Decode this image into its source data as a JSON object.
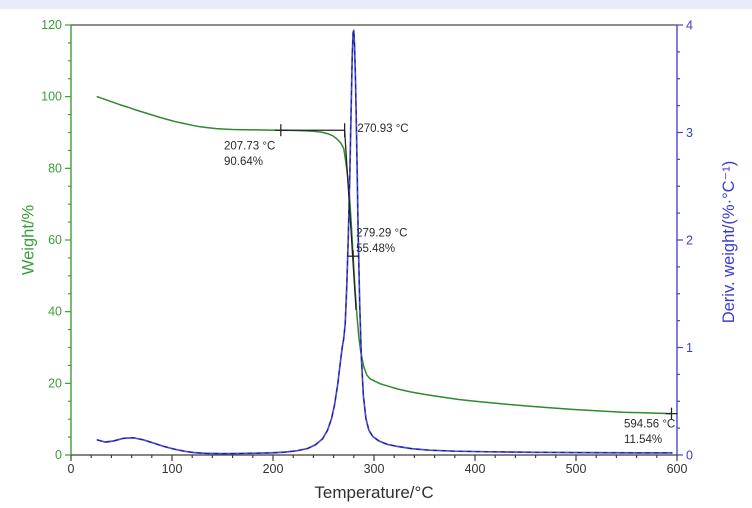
{
  "colors": {
    "top_strip": "#e9ebf8",
    "weight_green": "#2f8a2f",
    "axis_green": "#3b9c3b",
    "deriv_blue": "#4c50c4",
    "deriv_dash_navy": "#191b9e",
    "axis_blue": "#4747cc",
    "label_blue": "#3c3ccc",
    "axis_black": "#3c3c3c",
    "tick_label_black": "#333333",
    "annotation_text": "#2b2b2b",
    "construction_black": "#222222"
  },
  "chart_data": {
    "type": "line",
    "title": "",
    "xlabel": "Temperature/°C",
    "ylabel_left": "Weight/%",
    "ylabel_right": "Deriv. weight/(%·°C⁻¹)",
    "x_range": [
      0,
      600
    ],
    "x_major": 100,
    "x_minor": 20,
    "yl_range": [
      0,
      120
    ],
    "yl_major": 20,
    "yl_minor": 5,
    "yr_range": [
      0,
      4
    ],
    "yr_major": 1,
    "yr_minor": 0.25,
    "x_ticks": [
      0,
      100,
      200,
      300,
      400,
      500,
      600
    ],
    "yl_ticks": [
      0,
      20,
      40,
      60,
      80,
      100,
      120
    ],
    "yr_ticks": [
      0,
      1,
      2,
      3,
      4
    ],
    "grid": false,
    "legend": "none",
    "series": [
      {
        "name": "weight",
        "axis": "left",
        "style": "solid",
        "color_key": "weight_green",
        "width": 1.5,
        "points": [
          [
            26,
            100
          ],
          [
            32,
            99.4
          ],
          [
            40,
            98.6
          ],
          [
            48,
            97.8
          ],
          [
            56,
            97.1
          ],
          [
            64,
            96.3
          ],
          [
            72,
            95.6
          ],
          [
            80,
            94.9
          ],
          [
            88,
            94.2
          ],
          [
            96,
            93.6
          ],
          [
            104,
            93.0
          ],
          [
            112,
            92.5
          ],
          [
            120,
            92.0
          ],
          [
            128,
            91.6
          ],
          [
            136,
            91.3
          ],
          [
            144,
            91.1
          ],
          [
            152,
            90.95
          ],
          [
            160,
            90.85
          ],
          [
            172,
            90.78
          ],
          [
            184,
            90.72
          ],
          [
            196,
            90.68
          ],
          [
            208,
            90.64
          ],
          [
            220,
            90.58
          ],
          [
            230,
            90.5
          ],
          [
            240,
            90.35
          ],
          [
            248,
            90.1
          ],
          [
            254,
            89.7
          ],
          [
            259,
            89.1
          ],
          [
            263,
            88.3
          ],
          [
            267,
            87.1
          ],
          [
            270,
            85.6
          ],
          [
            272,
            82
          ],
          [
            274,
            77.5
          ],
          [
            276,
            71
          ],
          [
            278,
            62
          ],
          [
            279.3,
            55.5
          ],
          [
            281,
            47.5
          ],
          [
            283,
            39.5
          ],
          [
            285,
            33
          ],
          [
            287,
            28.5
          ],
          [
            290,
            24.5
          ],
          [
            293,
            22.3
          ],
          [
            296,
            21.3
          ],
          [
            300,
            20.7
          ],
          [
            306,
            19.9
          ],
          [
            314,
            19.2
          ],
          [
            324,
            18.4
          ],
          [
            336,
            17.6
          ],
          [
            350,
            16.9
          ],
          [
            366,
            16.2
          ],
          [
            384,
            15.5
          ],
          [
            404,
            14.9
          ],
          [
            426,
            14.3
          ],
          [
            450,
            13.7
          ],
          [
            474,
            13.2
          ],
          [
            498,
            12.7
          ],
          [
            522,
            12.3
          ],
          [
            546,
            11.95
          ],
          [
            570,
            11.75
          ],
          [
            594.6,
            11.54
          ]
        ]
      },
      {
        "name": "deriv_weight",
        "axis": "right",
        "style": "solid_with_dash_overlay",
        "color_key": "deriv_blue",
        "dash_color_key": "deriv_dash_navy",
        "width": 1.7,
        "points": [
          [
            26,
            0.14
          ],
          [
            34,
            0.12
          ],
          [
            42,
            0.13
          ],
          [
            52,
            0.155
          ],
          [
            62,
            0.16
          ],
          [
            72,
            0.14
          ],
          [
            82,
            0.11
          ],
          [
            92,
            0.08
          ],
          [
            102,
            0.055
          ],
          [
            112,
            0.035
          ],
          [
            122,
            0.022
          ],
          [
            134,
            0.015
          ],
          [
            150,
            0.013
          ],
          [
            166,
            0.014
          ],
          [
            182,
            0.017
          ],
          [
            198,
            0.02
          ],
          [
            212,
            0.027
          ],
          [
            224,
            0.04
          ],
          [
            234,
            0.06
          ],
          [
            242,
            0.095
          ],
          [
            249,
            0.15
          ],
          [
            254,
            0.23
          ],
          [
            258,
            0.34
          ],
          [
            261,
            0.47
          ],
          [
            264,
            0.65
          ],
          [
            266.5,
            0.85
          ],
          [
            268.5,
            1.0
          ],
          [
            270,
            1.08
          ],
          [
            271.5,
            1.22
          ],
          [
            273,
            1.55
          ],
          [
            274.5,
            2.0
          ],
          [
            276,
            2.6
          ],
          [
            277.3,
            3.2
          ],
          [
            278.4,
            3.7
          ],
          [
            279.3,
            3.93
          ],
          [
            280,
            3.95
          ],
          [
            280.8,
            3.8
          ],
          [
            281.8,
            3.45
          ],
          [
            283,
            2.85
          ],
          [
            284.3,
            2.1
          ],
          [
            285.8,
            1.4
          ],
          [
            287.5,
            0.9
          ],
          [
            289.5,
            0.55
          ],
          [
            292,
            0.34
          ],
          [
            295,
            0.23
          ],
          [
            299,
            0.17
          ],
          [
            305,
            0.13
          ],
          [
            313,
            0.1
          ],
          [
            323,
            0.08
          ],
          [
            337,
            0.06
          ],
          [
            355,
            0.045
          ],
          [
            380,
            0.035
          ],
          [
            415,
            0.03
          ],
          [
            460,
            0.025
          ],
          [
            510,
            0.022
          ],
          [
            560,
            0.02
          ],
          [
            595,
            0.02
          ]
        ]
      }
    ],
    "construction_lines": [
      {
        "name": "plateau-extrapolation-line",
        "from": [
          207.73,
          90.64
        ],
        "to": [
          270.93,
          90.64
        ]
      },
      {
        "name": "inflection-tangent-line",
        "from": [
          270.93,
          90.64
        ],
        "to": [
          282.2,
          40.5
        ]
      }
    ],
    "annotations": [
      {
        "name": "onset-point",
        "marker": "cross",
        "marker_at": [
          207.73,
          90.64
        ],
        "label_lines": [
          "207.73 °C",
          "90.64%"
        ],
        "label_anchor": [
          151.5,
          85.3
        ]
      },
      {
        "name": "extrapolated-onset-point",
        "marker": "vtick",
        "marker_at": [
          270.93,
          90.64
        ],
        "label_lines": [
          "270.93 °C"
        ],
        "label_anchor": [
          283.5,
          90.1
        ]
      },
      {
        "name": "midpoint",
        "marker": "cross",
        "marker_at": [
          279.29,
          55.48
        ],
        "label_lines": [
          "279.29 °C",
          "55.48%"
        ],
        "label_anchor": [
          282.3,
          61.0
        ]
      },
      {
        "name": "residue-point",
        "marker": "cross",
        "marker_at": [
          594.56,
          11.54
        ],
        "label_lines": [
          "594.56 °C",
          "11.54%"
        ],
        "label_anchor": [
          547.5,
          7.7
        ]
      }
    ]
  }
}
